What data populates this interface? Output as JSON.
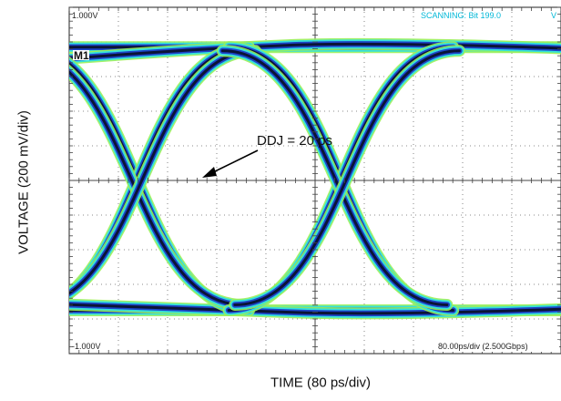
{
  "chart_data": {
    "type": "eye diagram",
    "xlabel": "TIME (80 ps/div)",
    "ylabel": "VOLTAGE (200 mV/div)",
    "top_ref_label": "1.000V",
    "bottom_ref_label": "-1.000V",
    "status_text": "SCANNING: Bit 199.0",
    "status_extra": "V",
    "marker_label": "M1",
    "timebase_text": "80.00ps/div (2.500Gbps)",
    "annotation": "DDJ = 20 ps",
    "x_divisions": 10,
    "y_divisions": 10,
    "grid": true,
    "crossings_ps": [
      110,
      442
    ],
    "ddj_ps": 20,
    "colors": {
      "trace_core": "#0a1436",
      "trace_mid": "#1d44c8",
      "trace_edge": "#34e0dc",
      "trace_fringe": "#9aef5a",
      "grid": "#666666",
      "status": "#00b8d8"
    }
  }
}
